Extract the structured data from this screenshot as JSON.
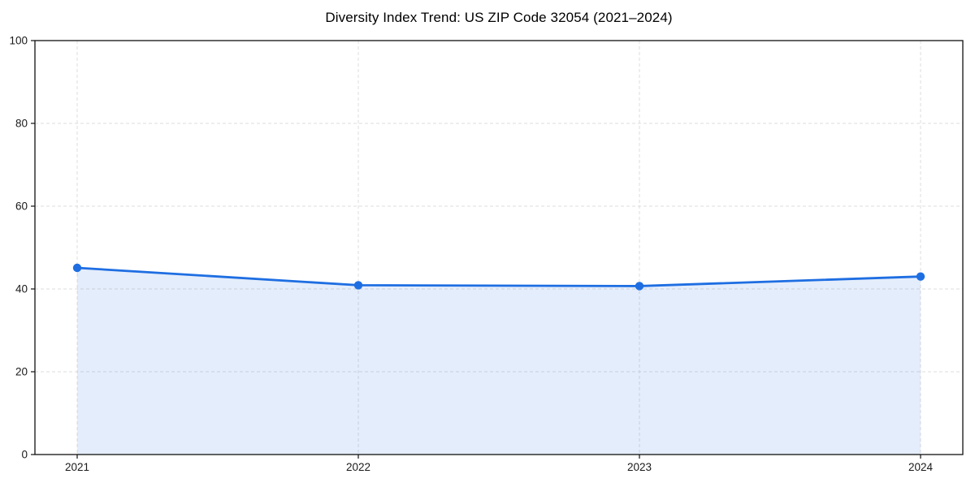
{
  "figure": {
    "background": "#ffffff"
  },
  "chart_data": {
    "type": "area",
    "title": "Diversity Index Trend: US ZIP Code 32054 (2021–2024)",
    "categories": [
      "2021",
      "2022",
      "2023",
      "2024"
    ],
    "series": [
      {
        "name": "Diversity Index",
        "values": [
          45.1,
          40.9,
          40.7,
          43.0
        ]
      }
    ],
    "xlabel": "",
    "ylabel": "",
    "ylim": [
      0,
      100
    ],
    "yticks": [
      0,
      20,
      40,
      60,
      80,
      100
    ],
    "grid": true,
    "grid_style": "dashed",
    "legend_position": "none",
    "marker": "circle",
    "colors": {
      "line": "#1E6EE2",
      "marker": "#1E6EE2",
      "fill": "#1E6EE2",
      "fill_opacity": 0.12,
      "grid": "#DEDEDE",
      "spine": "#111111",
      "tick": "#111111",
      "tick_label": "#1a1a1a",
      "title": "#000000"
    }
  }
}
